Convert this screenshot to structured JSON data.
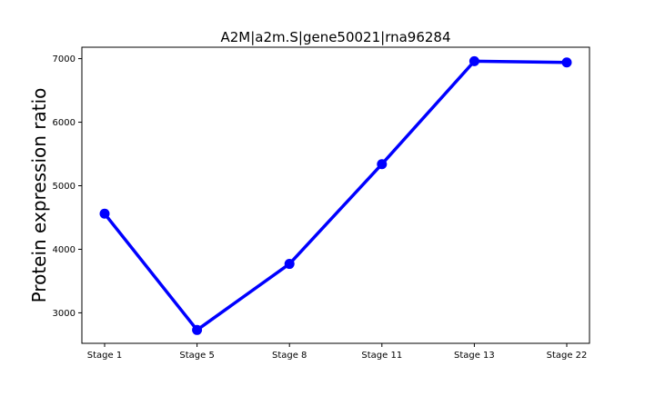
{
  "chart_data": {
    "type": "line",
    "title": "A2M|a2m.S|gene50021|rna96284",
    "xlabel": "",
    "ylabel": "Protein expression ratio",
    "categories": [
      "Stage 1",
      "Stage 5",
      "Stage 8",
      "Stage 11",
      "Stage 13",
      "Stage 22"
    ],
    "series": [
      {
        "values": [
          4560,
          2730,
          3770,
          5340,
          6960,
          6940
        ]
      }
    ],
    "yticks": [
      3000,
      4000,
      5000,
      6000,
      7000
    ],
    "ylim": [
      2520,
      7180
    ],
    "grid": false,
    "legend": "none",
    "colors": {
      "line": "#0000ff",
      "marker": "#0000ff",
      "axes": "#000000",
      "background": "#ffffff"
    }
  }
}
